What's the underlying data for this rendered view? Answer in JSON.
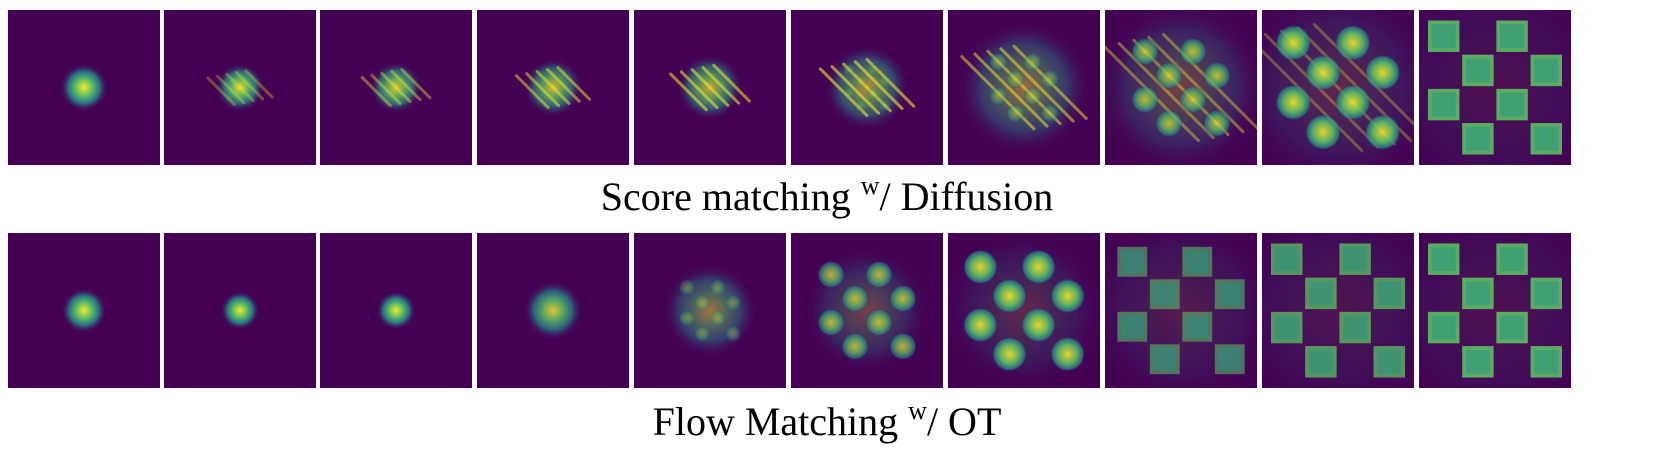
{
  "rows": [
    {
      "id": "score",
      "caption": {
        "pre": "Score matching ",
        "sup": "w",
        "post": "/ Diffusion"
      },
      "panel_count": 10,
      "stage_mix": [
        0.0,
        0.05,
        0.1,
        0.15,
        0.2,
        0.3,
        0.45,
        0.65,
        0.82,
        1.0
      ],
      "blob_spread": [
        0.16,
        0.15,
        0.15,
        0.16,
        0.17,
        0.2,
        0.27,
        0.3,
        0.32,
        0.33
      ],
      "stripes": true
    },
    {
      "id": "flow",
      "caption": {
        "pre": "Flow Matching ",
        "sup": "w",
        "post": "/ OT"
      },
      "panel_count": 10,
      "stage_mix": [
        0.0,
        0.0,
        0.0,
        0.1,
        0.4,
        0.65,
        0.8,
        0.9,
        0.96,
        1.0
      ],
      "blob_spread": [
        0.15,
        0.13,
        0.13,
        0.17,
        0.2,
        0.22,
        0.25,
        0.28,
        0.31,
        0.33
      ],
      "stripes": false
    }
  ],
  "colormap": {
    "background": "#440154",
    "low": "#3b528b",
    "mid": "#21918c",
    "high": "#5ec962",
    "peak": "#fde725"
  }
}
